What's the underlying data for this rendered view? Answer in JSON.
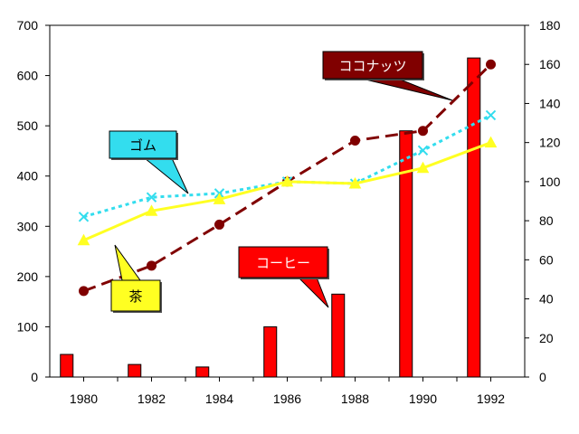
{
  "chart_data": {
    "type": "bar",
    "title": "",
    "xlabel": "",
    "ylabel_left": "",
    "ylabel_right": "",
    "grid": false,
    "x": [
      1980,
      1981,
      1982,
      1983,
      1984,
      1985,
      1986,
      1987,
      1988,
      1989,
      1990,
      1991,
      1992
    ],
    "x_ticks": [
      "1980",
      "1982",
      "1984",
      "1986",
      "1988",
      "1990",
      "1992"
    ],
    "y_left": {
      "range": [
        0,
        700
      ],
      "ticks": [
        "0",
        "100",
        "200",
        "300",
        "400",
        "500",
        "600",
        "700"
      ]
    },
    "y_right": {
      "range": [
        0,
        180
      ],
      "ticks": [
        "0",
        "20",
        "40",
        "60",
        "80",
        "100",
        "120",
        "140",
        "160",
        "180"
      ]
    },
    "bars": {
      "name": "コーヒー",
      "axis": "left",
      "color": "#ff0000",
      "x": [
        1979.5,
        1981.5,
        1983.5,
        1985.5,
        1987.5,
        1989.5,
        1991.5
      ],
      "values": [
        45,
        25,
        20,
        100,
        165,
        490,
        635
      ]
    },
    "series": [
      {
        "name": "ココナッツ",
        "axis": "right",
        "style": "dashed",
        "marker": "circle",
        "color": "#800000",
        "x": [
          1980,
          1982,
          1984,
          1986,
          1988,
          1990,
          1992
        ],
        "values": [
          44,
          57,
          78,
          100,
          121,
          126,
          160
        ]
      },
      {
        "name": "ゴム",
        "axis": "right",
        "style": "dotted",
        "marker": "x",
        "color": "#33ddee",
        "x": [
          1980,
          1982,
          1984,
          1986,
          1988,
          1990,
          1992
        ],
        "values": [
          82,
          92,
          94,
          100,
          99,
          116,
          134
        ]
      },
      {
        "name": "茶",
        "axis": "right",
        "style": "solid",
        "marker": "triangle",
        "color": "#ffff22",
        "x": [
          1980,
          1982,
          1984,
          1986,
          1988,
          1990,
          1992
        ],
        "values": [
          70,
          85,
          91,
          100,
          99,
          107,
          120
        ]
      }
    ],
    "callouts": [
      {
        "text": "ココナッツ",
        "series": "ココナッツ",
        "bg": "#800000",
        "fg": "#ffffff"
      },
      {
        "text": "ゴム",
        "series": "ゴム",
        "bg": "#33ddee",
        "fg": "#000000"
      },
      {
        "text": "コーヒー",
        "series": "コーヒー",
        "bg": "#ff0000",
        "fg": "#ffffff"
      },
      {
        "text": "茶",
        "series": "茶",
        "bg": "#ffff22",
        "fg": "#000000"
      }
    ]
  }
}
